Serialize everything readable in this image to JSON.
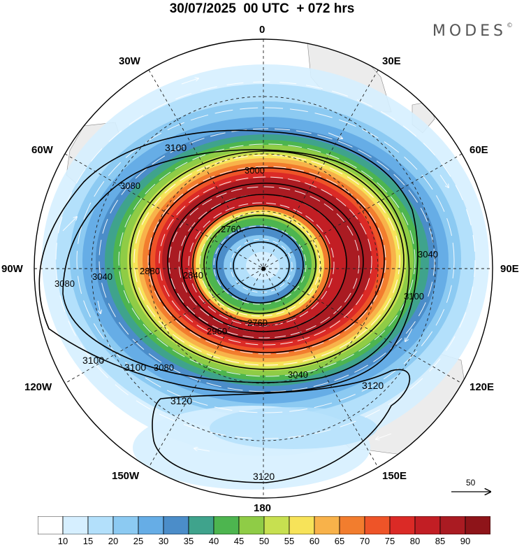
{
  "title": "30/07/2025  00 UTC  + 072 hrs",
  "brand": {
    "name": "MODES",
    "mark": "©"
  },
  "longitude_labels": {
    "n": "0",
    "ne30": "30E",
    "e60": "60E",
    "e90": "90E",
    "e120": "120E",
    "e150": "150E",
    "s": "180",
    "w150": "150W",
    "w120": "120W",
    "w90": "90W",
    "w60": "60W",
    "w30": "30W"
  },
  "contours": {
    "variable": "geopotential height",
    "levels": [
      "2760",
      "2800",
      "2840",
      "2880",
      "2920",
      "2960",
      "3000",
      "3040",
      "3080",
      "3100",
      "3120"
    ]
  },
  "vector_reference": {
    "value": "50"
  },
  "colorbar": {
    "labels": [
      "10",
      "15",
      "20",
      "25",
      "30",
      "35",
      "40",
      "45",
      "50",
      "55",
      "60",
      "65",
      "70",
      "75",
      "80",
      "85",
      "90"
    ],
    "colors": [
      "#ffffff",
      "#d6efff",
      "#b3e0fb",
      "#8ccaf2",
      "#66ade6",
      "#4b8dc9",
      "#3fa38c",
      "#4db54f",
      "#8fcc46",
      "#c7e050",
      "#f7e359",
      "#f8b24a",
      "#f27d2e",
      "#ee5428",
      "#db2a26",
      "#c21e24",
      "#aa1b22",
      "#8e1419"
    ]
  }
}
